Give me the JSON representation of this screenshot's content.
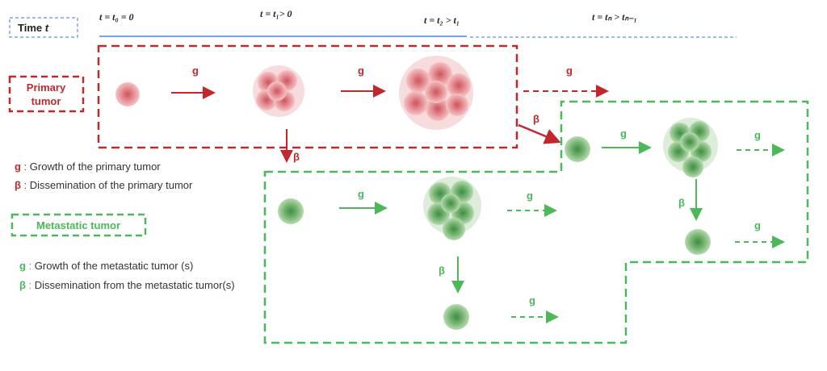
{
  "colors": {
    "primary": "#c0282d",
    "metastatic": "#4cb85a",
    "time": "#7aa6e0"
  },
  "time": {
    "label": "Time",
    "var": "t",
    "ticks": [
      "t = t₀ = 0",
      "t = t₁> 0",
      "t = t₂ > t₁",
      "t = tₙ > tₙ₋₁"
    ]
  },
  "primary": {
    "label_line1": "Primary",
    "label_line2": "tumor",
    "g": "g",
    "beta": "β"
  },
  "metastatic": {
    "label": "Metastatic  tumor",
    "g": "g",
    "beta": "β"
  },
  "legend": {
    "primary_g_sym": "g",
    "primary_g": "Growth of the primary tumor",
    "primary_b_sym": "β",
    "primary_b": "Dissemination of the primary tumor",
    "meta_g_sym": "g",
    "meta_g": "Growth of the metastatic tumor (s)",
    "meta_b_sym": "β",
    "meta_b": "Dissemination from the metastatic tumor(s)",
    "sep": " : "
  }
}
